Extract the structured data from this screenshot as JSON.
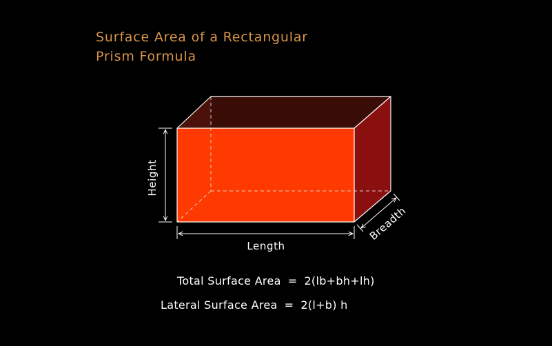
{
  "title": {
    "line1": "Surface Area of a Rectangular",
    "line2": "Prism Formula"
  },
  "labels": {
    "height": "Height",
    "length": "Length",
    "breadth": "Breadth"
  },
  "formulas": {
    "total_label": "Total Surface Area",
    "total_eq": "=",
    "total_expr": "2(lb+bh+lh)",
    "lateral_label": "Lateral Surface Area",
    "lateral_eq": "=",
    "lateral_expr": "2(l+b) h"
  },
  "colors": {
    "title": "#d9954a",
    "front_face": "#ff3a00",
    "top_face": "#4a1208",
    "side_face": "#8a1010",
    "background": "#000000"
  }
}
